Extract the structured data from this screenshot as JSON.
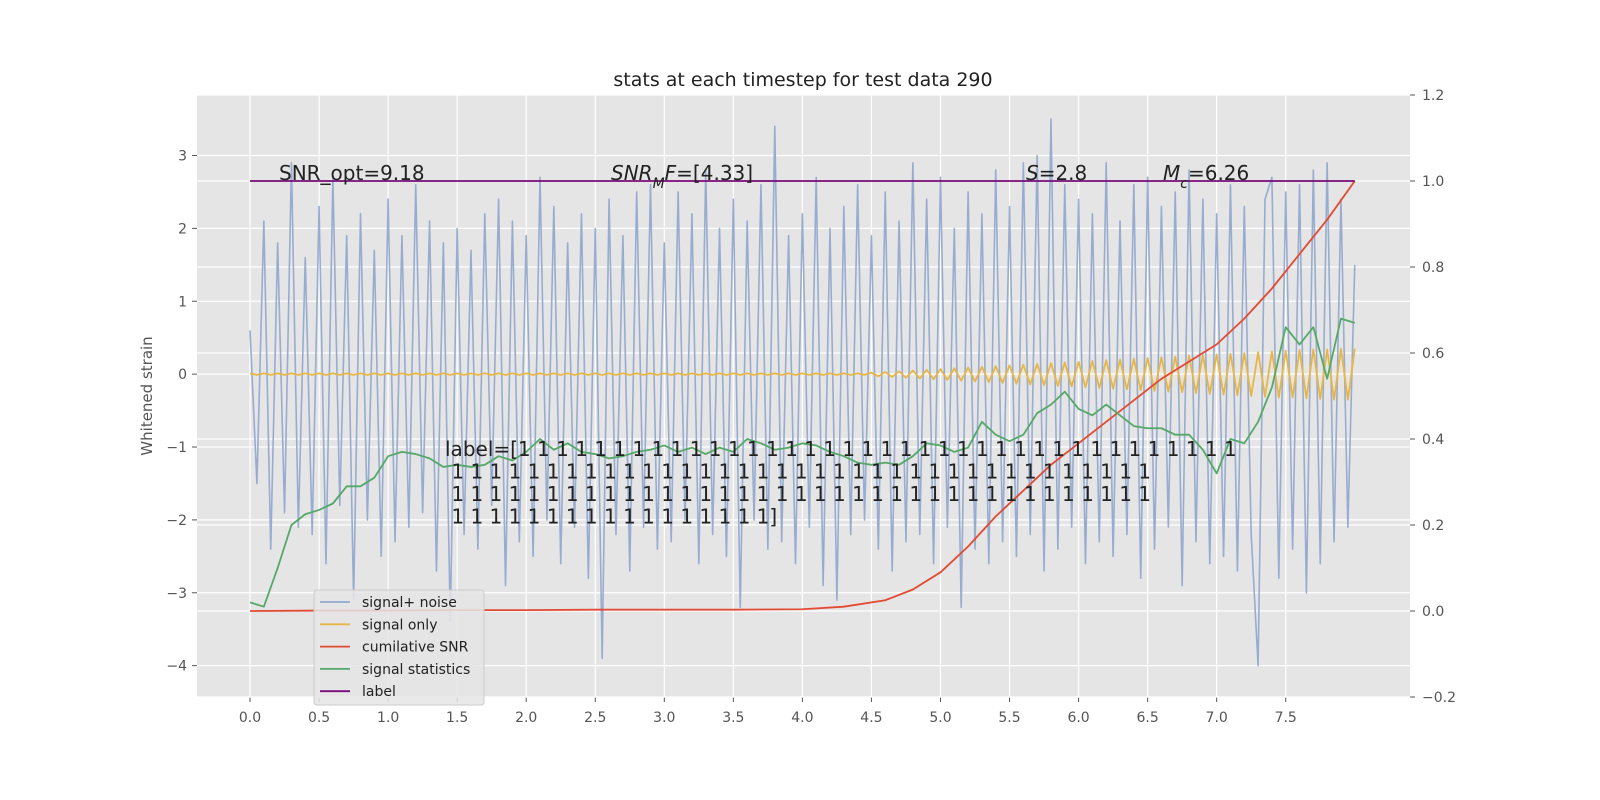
{
  "chart_data": {
    "type": "line",
    "title": "stats at each timestep for test data 290",
    "ylabel": "Whitened strain",
    "x": [
      0,
      0.05,
      0.1,
      0.15,
      0.2,
      0.25,
      0.3,
      0.35,
      0.4,
      0.45,
      0.5,
      0.55,
      0.6,
      0.65,
      0.7,
      0.75,
      0.8,
      0.85,
      0.9,
      0.95,
      1,
      1.05,
      1.1,
      1.15,
      1.2,
      1.25,
      1.3,
      1.35,
      1.4,
      1.45,
      1.5,
      1.55,
      1.6,
      1.65,
      1.7,
      1.75,
      1.8,
      1.85,
      1.9,
      1.95,
      2,
      2.05,
      2.1,
      2.15,
      2.2,
      2.25,
      2.3,
      2.35,
      2.4,
      2.45,
      2.5,
      2.55,
      2.6,
      2.65,
      2.7,
      2.75,
      2.8,
      2.85,
      2.9,
      2.95,
      3,
      3.05,
      3.1,
      3.15,
      3.2,
      3.25,
      3.3,
      3.35,
      3.4,
      3.45,
      3.5,
      3.55,
      3.6,
      3.65,
      3.7,
      3.75,
      3.8,
      3.85,
      3.9,
      3.95,
      4,
      4.05,
      4.1,
      4.15,
      4.2,
      4.25,
      4.3,
      4.35,
      4.4,
      4.45,
      4.5,
      4.55,
      4.6,
      4.65,
      4.7,
      4.75,
      4.8,
      4.85,
      4.9,
      4.95,
      5,
      5.05,
      5.1,
      5.15,
      5.2,
      5.25,
      5.3,
      5.35,
      5.4,
      5.45,
      5.5,
      5.55,
      5.6,
      5.65,
      5.7,
      5.75,
      5.8,
      5.85,
      5.9,
      5.95,
      6,
      6.05,
      6.1,
      6.15,
      6.2,
      6.25,
      6.3,
      6.35,
      6.4,
      6.45,
      6.5,
      6.55,
      6.6,
      6.65,
      6.7,
      6.75,
      6.8,
      6.85,
      6.9,
      6.95,
      7,
      7.05,
      7.1,
      7.15,
      7.2,
      7.25,
      7.3,
      7.35,
      7.4,
      7.45,
      7.5,
      7.55,
      7.6,
      7.65,
      7.7,
      7.75,
      7.8,
      7.85,
      7.9,
      7.95,
      8
    ],
    "series": [
      {
        "name": "signal+ noise",
        "color": "#92a9cf",
        "values": [
          0.6,
          -1.5,
          2.1,
          -2.4,
          1.8,
          -1.9,
          2.9,
          -2.1,
          1.6,
          -2.2,
          2.3,
          -2.6,
          2.7,
          -1.8,
          1.9,
          -3.1,
          2.2,
          -2.0,
          1.7,
          -2.5,
          2.4,
          -2.3,
          1.9,
          -2.1,
          2.6,
          -1.9,
          2.1,
          -2.7,
          1.8,
          -3.4,
          2.0,
          -2.2,
          1.7,
          -2.4,
          2.2,
          -1.8,
          2.4,
          -2.9,
          2.1,
          -2.3,
          1.9,
          -2.5,
          2.7,
          -2.0,
          2.3,
          -2.6,
          1.8,
          -2.1,
          2.2,
          -2.8,
          2.0,
          -3.9,
          2.4,
          -2.2,
          1.9,
          -2.7,
          2.5,
          -2.1,
          2.6,
          -2.4,
          1.8,
          -2.3,
          2.5,
          -2.0,
          2.2,
          -2.6,
          2.8,
          -2.2,
          2.0,
          -2.5,
          2.4,
          -3.2,
          2.1,
          -2.0,
          2.6,
          -2.4,
          3.4,
          -2.3,
          1.9,
          -2.6,
          2.2,
          -2.1,
          2.7,
          -2.9,
          2.0,
          -3.1,
          2.3,
          -2.2,
          2.6,
          -2.0,
          1.9,
          -2.4,
          2.5,
          -2.7,
          2.1,
          -2.3,
          2.9,
          -2.2,
          2.4,
          -2.6,
          2.7,
          -2.1,
          2.0,
          -3.2,
          2.5,
          -2.4,
          2.2,
          -2.6,
          2.8,
          -2.3,
          2.3,
          -2.5,
          2.9,
          -2.2,
          3.0,
          -2.7,
          3.5,
          -2.4,
          2.6,
          -2.1,
          2.4,
          -2.6,
          2.2,
          -2.3,
          2.9,
          -2.5,
          2.1,
          -2.2,
          2.6,
          -2.8,
          2.7,
          -2.4,
          2.3,
          -2.1,
          2.5,
          -2.9,
          2.8,
          -2.3,
          2.4,
          -2.6,
          2.2,
          -2.5,
          2.6,
          -2.7,
          2.3,
          -2.2,
          -4.0,
          2.4,
          2.7,
          -2.8,
          2.5,
          -2.4,
          2.6,
          -3.0,
          2.8,
          -2.6,
          2.9,
          -2.3,
          2.4,
          -2.1,
          1.5
        ]
      },
      {
        "name": "signal only",
        "color": "#e8b645",
        "values": [
          0.01,
          -0.01,
          0.01,
          -0.01,
          0.01,
          -0.01,
          0.01,
          -0.01,
          0.01,
          -0.01,
          0.01,
          -0.01,
          0.01,
          -0.01,
          0.01,
          -0.01,
          0.01,
          -0.01,
          0.01,
          -0.01,
          0.01,
          -0.01,
          0.01,
          -0.01,
          0.01,
          -0.01,
          0.01,
          -0.01,
          0.01,
          -0.01,
          0.01,
          -0.01,
          0.01,
          -0.01,
          0.01,
          -0.01,
          0.01,
          -0.01,
          0.01,
          -0.01,
          0.01,
          -0.01,
          0.01,
          -0.01,
          0.01,
          -0.01,
          0.01,
          -0.01,
          0.01,
          -0.01,
          0.01,
          -0.01,
          0.01,
          -0.01,
          0.01,
          -0.01,
          0.01,
          -0.01,
          0.01,
          -0.01,
          0.01,
          -0.01,
          0.01,
          -0.01,
          0.01,
          -0.01,
          0.01,
          -0.01,
          0.01,
          -0.01,
          0.01,
          -0.01,
          0.01,
          -0.01,
          0.01,
          -0.01,
          0.01,
          -0.01,
          0.01,
          -0.01,
          0.01,
          -0.01,
          0.01,
          -0.01,
          0.01,
          -0.01,
          0.01,
          -0.01,
          0.01,
          -0.01,
          0.02,
          -0.03,
          0.03,
          -0.04,
          0.04,
          -0.05,
          0.05,
          -0.06,
          0.06,
          -0.07,
          0.07,
          -0.08,
          0.08,
          -0.09,
          0.09,
          -0.1,
          0.1,
          -0.11,
          0.11,
          -0.12,
          0.12,
          -0.13,
          0.13,
          -0.14,
          0.14,
          -0.15,
          0.15,
          -0.16,
          0.16,
          -0.17,
          0.17,
          -0.18,
          0.18,
          -0.19,
          0.19,
          -0.2,
          0.2,
          -0.21,
          0.21,
          -0.22,
          0.22,
          -0.23,
          0.23,
          -0.24,
          0.24,
          -0.25,
          0.25,
          -0.26,
          0.26,
          -0.27,
          0.27,
          -0.28,
          0.28,
          -0.29,
          0.29,
          -0.3,
          0.3,
          -0.31,
          0.31,
          -0.32,
          0.32,
          -0.32,
          0.33,
          -0.33,
          0.34,
          -0.34,
          0.34,
          -0.35,
          0.35,
          -0.35,
          0.35
        ]
      },
      {
        "name": "cumilative SNR",
        "color": "#e24a33",
        "axis": "y2",
        "x": [
          0,
          0.5,
          1,
          1.5,
          2,
          2.5,
          3,
          3.5,
          4,
          4.3,
          4.6,
          4.8,
          5,
          5.2,
          5.4,
          5.6,
          5.8,
          6,
          6.2,
          6.4,
          6.6,
          6.8,
          7,
          7.2,
          7.4,
          7.6,
          7.8,
          8
        ],
        "values": [
          0,
          0.001,
          0.001,
          0.002,
          0.002,
          0.003,
          0.003,
          0.003,
          0.004,
          0.01,
          0.025,
          0.05,
          0.09,
          0.15,
          0.22,
          0.28,
          0.34,
          0.39,
          0.44,
          0.49,
          0.54,
          0.58,
          0.62,
          0.68,
          0.75,
          0.83,
          0.91,
          1.0
        ]
      },
      {
        "name": "signal statistics",
        "color": "#55a868",
        "axis": "y2",
        "x": [
          0,
          0.1,
          0.2,
          0.3,
          0.4,
          0.5,
          0.6,
          0.7,
          0.8,
          0.9,
          1,
          1.1,
          1.2,
          1.3,
          1.4,
          1.5,
          1.6,
          1.7,
          1.8,
          1.9,
          2,
          2.1,
          2.2,
          2.3,
          2.4,
          2.5,
          2.6,
          2.7,
          2.8,
          2.9,
          3,
          3.1,
          3.2,
          3.3,
          3.4,
          3.5,
          3.6,
          3.7,
          3.8,
          3.9,
          4,
          4.1,
          4.2,
          4.3,
          4.4,
          4.5,
          4.6,
          4.7,
          4.8,
          4.9,
          5,
          5.1,
          5.2,
          5.3,
          5.4,
          5.5,
          5.6,
          5.7,
          5.8,
          5.9,
          6,
          6.1,
          6.2,
          6.3,
          6.4,
          6.5,
          6.6,
          6.7,
          6.8,
          6.9,
          7,
          7.1,
          7.2,
          7.3,
          7.4,
          7.5,
          7.6,
          7.7,
          7.8,
          7.9,
          8
        ],
        "values": [
          0.02,
          0.01,
          0.1,
          0.2,
          0.225,
          0.235,
          0.25,
          0.29,
          0.29,
          0.31,
          0.36,
          0.37,
          0.365,
          0.355,
          0.335,
          0.34,
          0.335,
          0.34,
          0.36,
          0.35,
          0.37,
          0.4,
          0.375,
          0.39,
          0.37,
          0.365,
          0.355,
          0.36,
          0.37,
          0.375,
          0.385,
          0.37,
          0.38,
          0.365,
          0.38,
          0.37,
          0.4,
          0.39,
          0.375,
          0.38,
          0.39,
          0.385,
          0.37,
          0.36,
          0.345,
          0.34,
          0.345,
          0.34,
          0.36,
          0.39,
          0.385,
          0.37,
          0.38,
          0.44,
          0.41,
          0.395,
          0.41,
          0.46,
          0.48,
          0.51,
          0.47,
          0.455,
          0.48,
          0.455,
          0.43,
          0.425,
          0.425,
          0.41,
          0.41,
          0.375,
          0.32,
          0.4,
          0.39,
          0.44,
          0.52,
          0.66,
          0.62,
          0.66,
          0.54,
          0.68,
          0.67
        ]
      },
      {
        "name": "label",
        "color": "#7a0a7a",
        "axis": "y2",
        "x": [
          0,
          8
        ],
        "values": [
          1,
          1
        ]
      }
    ],
    "xlim": [
      -0.384,
      8.4
    ],
    "ylim": [
      -4.43,
      3.83
    ],
    "y2lim": [
      -0.2,
      1.2
    ],
    "xticks": [
      {
        "value": 0,
        "label": "0.0"
      },
      {
        "value": 0.5,
        "label": "0.5"
      },
      {
        "value": 1,
        "label": "1.0"
      },
      {
        "value": 1.5,
        "label": "1.5"
      },
      {
        "value": 2,
        "label": "2.0"
      },
      {
        "value": 2.5,
        "label": "2.5"
      },
      {
        "value": 3,
        "label": "3.0"
      },
      {
        "value": 3.5,
        "label": "3.5"
      },
      {
        "value": 4,
        "label": "4.0"
      },
      {
        "value": 4.5,
        "label": "4.5"
      },
      {
        "value": 5,
        "label": "5.0"
      },
      {
        "value": 5.5,
        "label": "5.5"
      },
      {
        "value": 6,
        "label": "6.0"
      },
      {
        "value": 6.5,
        "label": "6.5"
      },
      {
        "value": 7,
        "label": "7.0"
      },
      {
        "value": 7.5,
        "label": "7.5"
      }
    ],
    "yticks": [
      {
        "value": -4,
        "label": "−4"
      },
      {
        "value": -3,
        "label": "−3"
      },
      {
        "value": -2,
        "label": "−2"
      },
      {
        "value": -1,
        "label": "−1"
      },
      0,
      1,
      2,
      3
    ],
    "y2ticks": [
      {
        "value": -0.2,
        "label": "−0.2"
      },
      {
        "value": 0,
        "label": "0.0"
      },
      0.2,
      0.4,
      0.6,
      0.8,
      {
        "value": 1,
        "label": "1.0"
      },
      1.2
    ],
    "grid": true,
    "legend": "lower left",
    "annotations": [
      [
        {
          "text": "SNR_opt=9.18"
        }
      ],
      [
        {
          "text": "SNR",
          "italic": true
        },
        {
          "text": "M",
          "italic": true,
          "sub": true
        },
        {
          "text": "F",
          "italic": true
        },
        {
          "text": "=[4.33]"
        }
      ],
      [
        {
          "text": "S",
          "italic": true
        },
        {
          "text": "=2.8"
        }
      ],
      [
        {
          "text": "M",
          "italic": true
        },
        {
          "text": "c",
          "italic": true,
          "sub": true
        },
        {
          "text": "=6.26"
        }
      ]
    ],
    "label_text": [
      "label=[1 1 1 1 1 1 1 1 1 1 1 1 1 1 1 1 1 1 1 1 1 1 1 1 1 1 1 1 1 1 1 1 1 1 1 1 1 1",
      " 1 1 1 1 1 1 1 1 1 1 1 1 1 1 1 1 1 1 1 1 1 1 1 1 1 1 1 1 1 1 1 1 1 1 1 1 1",
      " 1 1 1 1 1 1 1 1 1 1 1 1 1 1 1 1 1 1 1 1 1 1 1 1 1 1 1 1 1 1 1 1 1 1 1 1 1",
      " 1 1 1 1 1 1 1 1 1 1 1 1 1 1 1 1 1]"
    ]
  }
}
